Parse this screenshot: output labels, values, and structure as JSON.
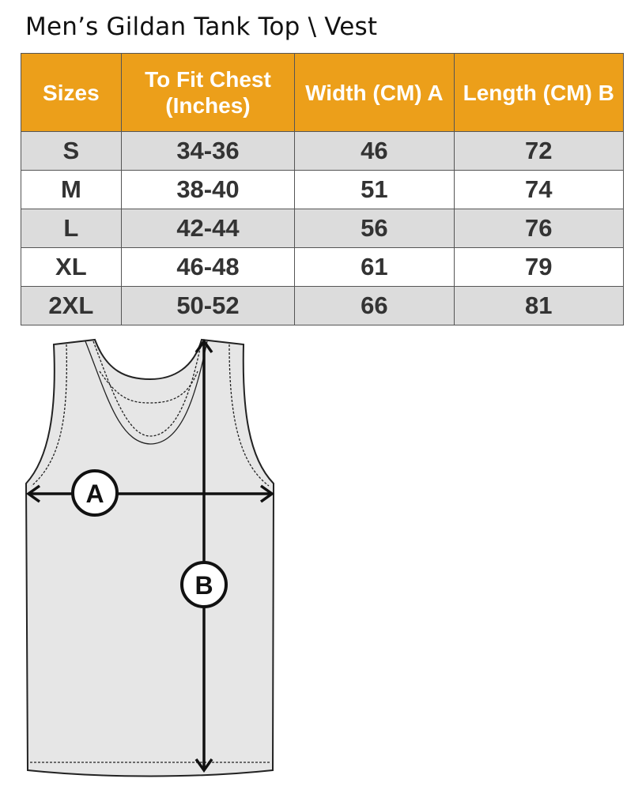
{
  "title": "Men’s Gildan Tank Top \\ Vest",
  "header_color": "#ec9f1a",
  "table": {
    "headers": [
      "Sizes",
      "To Fit Chest (Inches)",
      "Width (CM) A",
      "Length  (CM) B"
    ],
    "rows": [
      [
        "S",
        "34-36",
        "46",
        "72"
      ],
      [
        "M",
        "38-40",
        "51",
        "74"
      ],
      [
        "L",
        "42-44",
        "56",
        "76"
      ],
      [
        "XL",
        "46-48",
        "61",
        "79"
      ],
      [
        "2XL",
        "50-52",
        "66",
        "81"
      ]
    ]
  },
  "diagram": {
    "label_a": "A",
    "label_b": "B"
  }
}
